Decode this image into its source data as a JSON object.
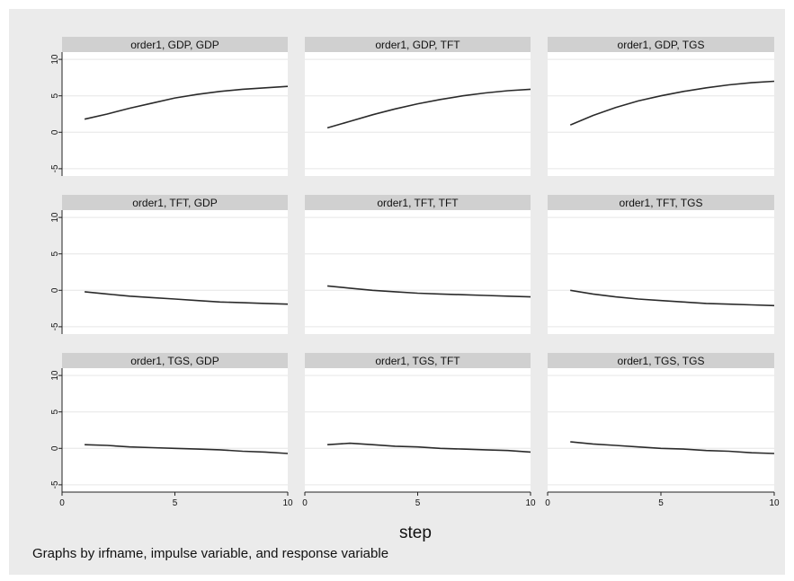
{
  "chart_data": {
    "type": "line",
    "layout": "3x3 small multiples",
    "xlabel": "step",
    "note": "Graphs by irfname, impulse variable, and response variable",
    "xlim": [
      0,
      10
    ],
    "ylim": [
      -6,
      11
    ],
    "x_ticks": [
      0,
      5,
      10
    ],
    "x_tick_labels": [
      "0",
      "5",
      "10"
    ],
    "y_ticks": [
      -5,
      0,
      5,
      10
    ],
    "y_tick_labels": [
      "-5",
      "0",
      "5",
      "10"
    ],
    "grid": true,
    "colors": {
      "background": "#ebebeb",
      "plot_area": "#ffffff",
      "grid": "#e6e6e6",
      "strip": "#d0d0d0",
      "line": "#2a2a2a"
    },
    "x": [
      1,
      2,
      3,
      4,
      5,
      6,
      7,
      8,
      9,
      10
    ],
    "panels": [
      {
        "title": "order1, GDP, GDP",
        "values": [
          1.8,
          2.5,
          3.3,
          4.0,
          4.7,
          5.2,
          5.6,
          5.9,
          6.1,
          6.3
        ]
      },
      {
        "title": "order1, GDP, TFT",
        "values": [
          0.6,
          1.5,
          2.4,
          3.2,
          3.9,
          4.5,
          5.0,
          5.4,
          5.7,
          5.9
        ]
      },
      {
        "title": "order1, GDP, TGS",
        "values": [
          1.0,
          2.3,
          3.4,
          4.3,
          5.0,
          5.6,
          6.1,
          6.5,
          6.8,
          7.0
        ]
      },
      {
        "title": "order1, TFT, GDP",
        "values": [
          -0.2,
          -0.5,
          -0.8,
          -1.0,
          -1.2,
          -1.4,
          -1.6,
          -1.7,
          -1.8,
          -1.9
        ]
      },
      {
        "title": "order1, TFT, TFT",
        "values": [
          0.6,
          0.3,
          0.0,
          -0.2,
          -0.4,
          -0.5,
          -0.6,
          -0.7,
          -0.8,
          -0.9
        ]
      },
      {
        "title": "order1, TFT, TGS",
        "values": [
          0.0,
          -0.5,
          -0.9,
          -1.2,
          -1.4,
          -1.6,
          -1.8,
          -1.9,
          -2.0,
          -2.1
        ]
      },
      {
        "title": "order1, TGS, GDP",
        "values": [
          0.5,
          0.4,
          0.2,
          0.1,
          0.0,
          -0.1,
          -0.2,
          -0.4,
          -0.5,
          -0.7
        ]
      },
      {
        "title": "order1, TGS, TFT",
        "values": [
          0.5,
          0.7,
          0.5,
          0.3,
          0.2,
          0.0,
          -0.1,
          -0.2,
          -0.3,
          -0.5
        ]
      },
      {
        "title": "order1, TGS, TGS",
        "values": [
          0.9,
          0.6,
          0.4,
          0.2,
          0.0,
          -0.1,
          -0.3,
          -0.4,
          -0.6,
          -0.7
        ]
      }
    ]
  }
}
